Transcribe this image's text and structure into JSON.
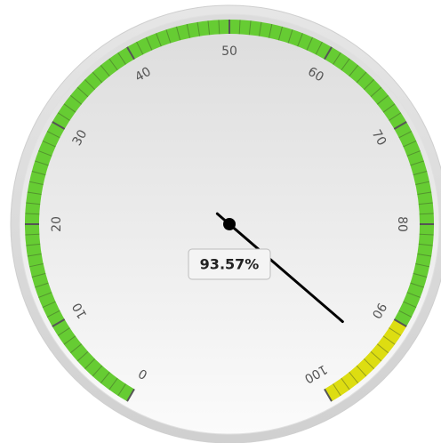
{
  "chart_data": {
    "type": "gauge",
    "value": 93.57,
    "value_label": "93.57%",
    "ylim": [
      0,
      100
    ],
    "yticks": [
      0,
      10,
      20,
      30,
      40,
      50,
      60,
      70,
      80,
      90,
      100
    ],
    "bands": [
      {
        "from": 0,
        "to": 90,
        "color": "#66cc33"
      },
      {
        "from": 90,
        "to": 100,
        "color": "#dddd11"
      }
    ]
  }
}
